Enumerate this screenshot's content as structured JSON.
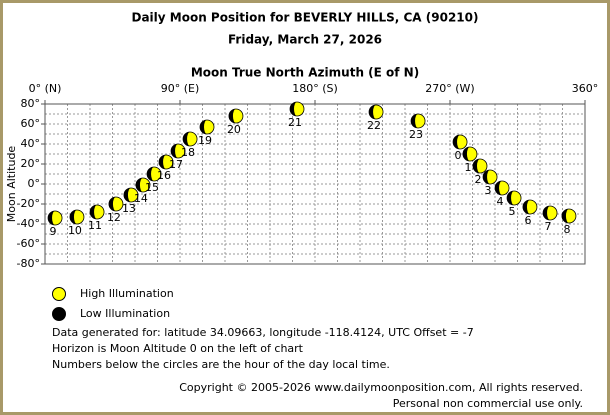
{
  "chart_data": {
    "type": "scatter",
    "title": "Daily Moon Position for BEVERLY HILLS, CA (90210)",
    "subtitle": "Friday, March 27, 2026",
    "xlabel": "Moon True North Azimuth (E of N)",
    "ylabel": "Moon Altitude",
    "x": [
      6.7,
      21.3,
      34.7,
      47.3,
      57.3,
      65.3,
      72.7,
      80.7,
      88.7,
      96.7,
      108,
      127.3,
      168,
      220.7,
      248.7,
      276.7,
      283.3,
      290,
      296.7,
      304.7,
      312.7,
      323.3,
      336.7,
      349.3
    ],
    "values": [
      -34,
      -33,
      -28,
      -20,
      -11,
      -1,
      10,
      22,
      33,
      45,
      57,
      68,
      75,
      72,
      63,
      42,
      30,
      18,
      7,
      -4,
      -14,
      -23,
      -29,
      -32
    ],
    "point_labels": [
      "9",
      "10",
      "11",
      "12",
      "13",
      "14",
      "15",
      "16",
      "17",
      "18",
      "19",
      "20",
      "21",
      "22",
      "23",
      "0",
      "1",
      "2",
      "3",
      "4",
      "5",
      "6",
      "7",
      "8"
    ],
    "xlim": [
      0,
      360
    ],
    "ylim": [
      -80,
      80
    ],
    "xticks": [
      {
        "value": 0,
        "label": "0° (N)"
      },
      {
        "value": 90,
        "label": "90° (E)"
      },
      {
        "value": 180,
        "label": "180° (S)"
      },
      {
        "value": 270,
        "label": "270° (W)"
      },
      {
        "value": 360,
        "label": "360°"
      }
    ],
    "yticks": [
      {
        "value": 80,
        "label": "80°"
      },
      {
        "value": 60,
        "label": "60°"
      },
      {
        "value": 40,
        "label": "40°"
      },
      {
        "value": 20,
        "label": "20°"
      },
      {
        "value": 0,
        "label": "0°"
      },
      {
        "value": -20,
        "label": "-20°"
      },
      {
        "value": -40,
        "label": "-40°"
      },
      {
        "value": -60,
        "label": "-60°"
      },
      {
        "value": -80,
        "label": "-80°"
      }
    ],
    "xgrid": [
      15,
      30,
      45,
      60,
      75,
      90,
      105,
      120,
      135,
      150,
      165,
      180,
      195,
      210,
      225,
      240,
      255,
      270,
      285,
      300,
      315,
      330,
      345
    ],
    "ygrid": [
      70,
      60,
      50,
      40,
      30,
      20,
      10,
      0,
      -10,
      -20,
      -30,
      -40,
      -50,
      -60,
      -70
    ],
    "legend": [
      {
        "name": "High Illumination",
        "color": "#ffff00"
      },
      {
        "name": "Low Illumination",
        "color": "#000000"
      }
    ],
    "notes": [
      "Data generated for: latitude 34.09663, longitude -118.4124, UTC Offset = -7",
      "Horizon is Moon Altitude 0 on the left of chart",
      "Numbers below the circles are the hour of the day local time."
    ],
    "copyright": [
      "Copyright © 2005-2026 www.dailymoonposition.com, All rights reserved.",
      "Personal non commercial use only."
    ]
  }
}
